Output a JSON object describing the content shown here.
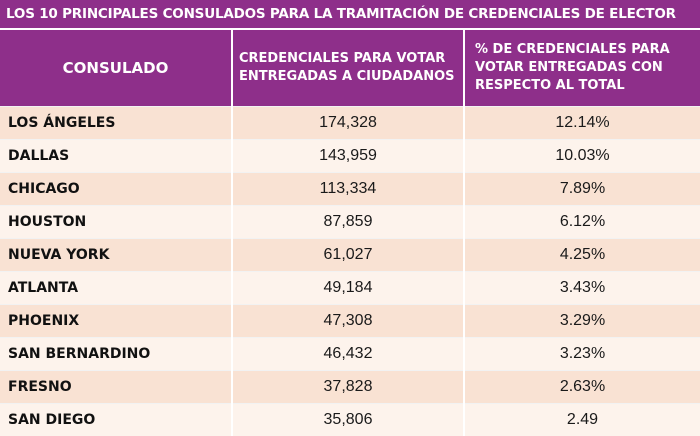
{
  "title": "LOS 10 PRINCIPALES CONSULADOS PARA LA TRAMITACIÓN DE CREDENCIALES DE ELECTOR",
  "colors": {
    "header": "#8e2f8a",
    "row_odd": "#f9e2d3",
    "row_even": "#fdf3ec"
  },
  "headers": [
    "CONSULADO",
    "CREDENCIALES PARA VOTAR ENTREGADAS A CIUDADANOS",
    "% DE CREDENCIALES PARA VOTAR ENTREGADAS CON RESPECTO AL TOTAL"
  ],
  "chart_data": {
    "type": "table",
    "title": "LOS 10 PRINCIPALES CONSULADOS PARA LA TRAMITACIÓN DE CREDENCIALES DE ELECTOR",
    "columns": [
      "CONSULADO",
      "CREDENCIALES PARA VOTAR ENTREGADAS A CIUDADANOS",
      "% DE CREDENCIALES PARA VOTAR ENTREGADAS CON RESPECTO AL TOTAL"
    ],
    "rows": [
      [
        "LOS ÁNGELES",
        "174,328",
        "12.14%"
      ],
      [
        "DALLAS",
        "143,959",
        "10.03%"
      ],
      [
        "CHICAGO",
        "113,334",
        "7.89%"
      ],
      [
        "HOUSTON",
        "87,859",
        "6.12%"
      ],
      [
        "NUEVA YORK",
        "61,027",
        "4.25%"
      ],
      [
        "ATLANTA",
        "49,184",
        "3.43%"
      ],
      [
        "PHOENIX",
        "47,308",
        "3.29%"
      ],
      [
        "SAN BERNARDINO",
        "46,432",
        "3.23%"
      ],
      [
        "FRESNO",
        "37,828",
        "2.63%"
      ],
      [
        "SAN DIEGO",
        "35,806",
        "2.49"
      ]
    ]
  }
}
